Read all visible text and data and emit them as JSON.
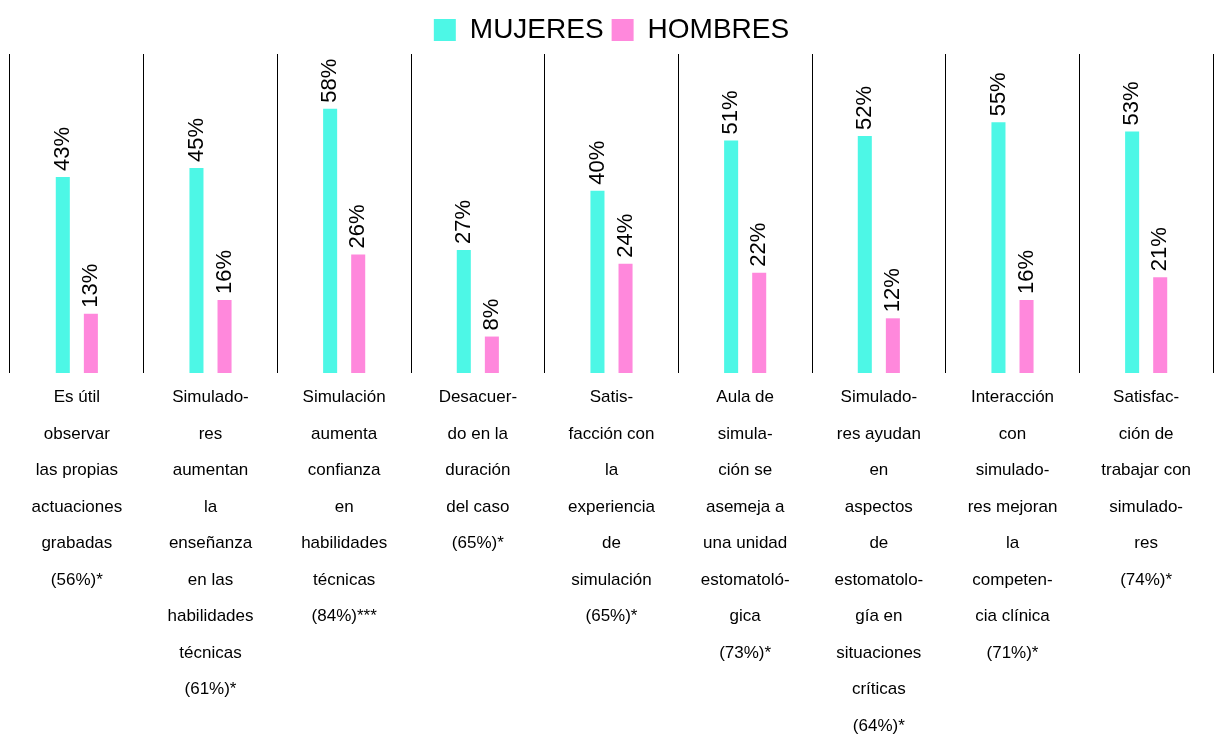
{
  "chart_data": {
    "type": "bar",
    "categories": [
      "Es útil\nobservar\nlas propias\nactuaciones\ngrabadas\n(56%)*",
      "Simulado-\nres\naumentan\nla\nenseñanza\nen las\nhabilidades\ntécnicas\n(61%)*",
      "Simulación\naumenta\nconfianza\nen\nhabilidades\ntécnicas\n(84%)***",
      "Desacuer-\ndo en la\nduración\ndel caso\n(65%)*",
      "Satis-\nfacción con\nla\nexperiencia\nde\nsimulación\n(65%)*",
      "Aula de\nsimula-\nción se\nasemeja a\nuna unidad\nestomatoló-\ngica\n(73%)*",
      "Simulado-\nres ayudan\nen\naspectos\nde\nestomatolo-\ngía en\nsituaciones\ncríticas\n(64%)*",
      "Interacción\ncon\nsimulado-\nres mejoran\nla\ncompeten-\ncia clínica\n(71%)*",
      "Satisfac-\nción de\ntrabajar con\nsimulado-\nres\n(74%)*"
    ],
    "series": [
      {
        "name": "MUJERES",
        "color": "#4df7e6",
        "values": [
          43,
          45,
          58,
          27,
          40,
          51,
          52,
          55,
          53
        ],
        "value_labels": [
          "43%",
          "45%",
          "58%",
          "27%",
          "40%",
          "51%",
          "52%",
          "55%",
          "53%"
        ]
      },
      {
        "name": "HOMBRES",
        "color": "#ff88dc",
        "values": [
          13,
          16,
          26,
          8,
          24,
          22,
          12,
          16,
          21
        ],
        "value_labels": [
          "13%",
          "16%",
          "26%",
          "8%",
          "24%",
          "22%",
          "12%",
          "16%",
          "21%"
        ]
      }
    ],
    "grid": "x",
    "legend": "top",
    "tick_labels": "x"
  }
}
